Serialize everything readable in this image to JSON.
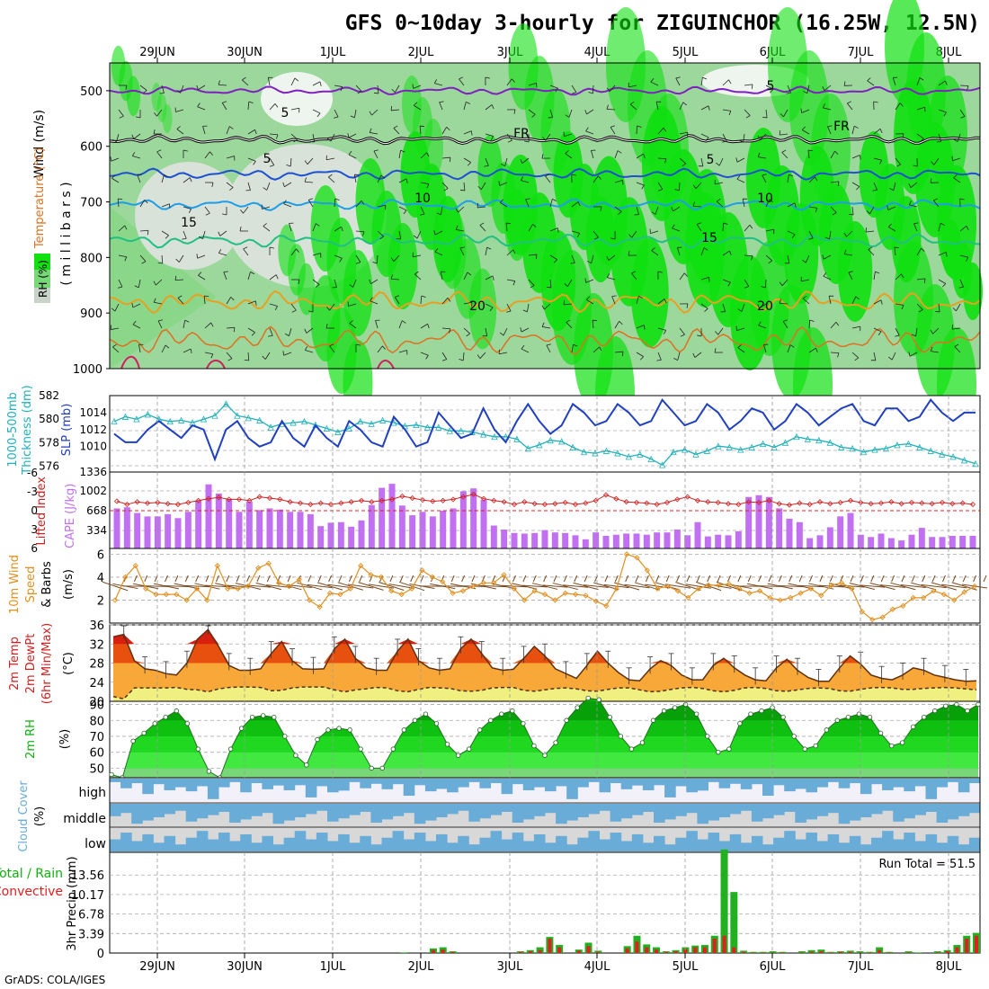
{
  "title": "GFS 0~10day 3-hourly for ZIGUINCHOR (16.25W, 12.5N)",
  "credit": "GrADS: COLA/IGES",
  "colors": {
    "rh_light": "#c8d4c8",
    "rh_mid": "#78d878",
    "rh_bright": "#10e010",
    "temp_5": "#1e50d0",
    "temp_10": "#1e9ee8",
    "temp_15": "#20c080",
    "temp_20": "#e8a020",
    "wind_5": "#8020c0",
    "slp": "#2040c0",
    "thick": "#20b0b8",
    "li": "#d02020",
    "cape": "#c070f0",
    "wind10": "#e09020",
    "t2m": "#f07010",
    "dewpt": "#f0f080",
    "rh2m": "#10b010",
    "cloud": "#6aacd8",
    "cloud_bg": "#d8d8d8",
    "precip_total": "#20b020",
    "precip_conv": "#e02020"
  },
  "dates_top": [
    "29JUN",
    "30JUN",
    "1JUL",
    "2JUL",
    "3JUL",
    "4JUL",
    "5JUL",
    "6JUL",
    "7JUL",
    "8JUL"
  ],
  "dates_bottom": [
    "29JUN",
    "30JUN",
    "1JUL",
    "2JUL",
    "3JUL",
    "4JUL",
    "5JUL",
    "6JUL",
    "7JUL",
    "8JUL"
  ],
  "panels": {
    "upper": {
      "ylabel_rh": "RH (%)",
      "ylabel_temp": "Temperature (°C)",
      "ylabel_wind": "Wind (m/s)",
      "ylabel_mb": "( m i l l i b a r s )",
      "ticks": [
        "500",
        "600",
        "700",
        "800",
        "900",
        "1000"
      ],
      "labels": {
        "wind5a": "5",
        "wind5b": "5",
        "fr1": "FR",
        "fr2": "FR",
        "t5a": "5",
        "t5b": "5",
        "t10a": "10",
        "t10b": "10",
        "t15a": "15",
        "t15b": "15",
        "t20a": "20",
        "t20b": "20"
      }
    },
    "slp": {
      "ylabel_a": "1000-500mb",
      "ylabel_b": "Thickness (dm)",
      "ylabel_c": "SLP (mb)",
      "left_ticks": [
        "582",
        "580",
        "578",
        "576"
      ],
      "right_ticks": [
        "1014",
        "1012",
        "1010"
      ],
      "extra_tick": "1336"
    },
    "cape": {
      "ylabel_a": "Lifted Index",
      "ylabel_b": "CAPE (J/kg)",
      "left_ticks": [
        "-6",
        "-3",
        "0",
        "3",
        "6"
      ],
      "right_ticks": [
        "1002",
        "668",
        "334"
      ]
    },
    "wind10": {
      "ylabel_a": "10m Wind",
      "ylabel_b": "Speed",
      "ylabel_c": "& Barbs",
      "ylabel_d": "(m/s)",
      "ticks": [
        "6",
        "4",
        "2"
      ]
    },
    "t2m": {
      "ylabel_a": "2m Temp",
      "ylabel_b": "2m DewPt",
      "ylabel_c": "(6hr Min/Max)",
      "ylabel_d": "(°C)",
      "ticks": [
        "36",
        "32",
        "28",
        "24",
        "20"
      ]
    },
    "rh2m": {
      "ylabel_a": "2m RH",
      "ylabel_b": "(%)",
      "ticks": [
        "90",
        "80",
        "70",
        "60",
        "50"
      ]
    },
    "cloud": {
      "ylabel_a": "Cloud Cover",
      "ylabel_b": "(%)",
      "levels": [
        "high",
        "middle",
        "low"
      ]
    },
    "precip": {
      "ylabel_a": "Total / Rain",
      "ylabel_b": "Convective",
      "ylabel_c": "3hr Precip (mm)",
      "ticks": [
        "13.56",
        "10.17",
        "6.78",
        "3.39",
        "0"
      ],
      "run_total": "Run Total = 51.5"
    }
  },
  "chart_data": [
    {
      "type": "line",
      "title": "1000-500mb Thickness (dm) / SLP (mb)",
      "series": [
        {
          "name": "SLP (mb)",
          "values": [
            1011.5,
            1010.5,
            1010.5,
            1012,
            1013,
            1012,
            1011,
            1012.5,
            1012,
            1008.5,
            1012,
            1013,
            1011,
            1010,
            1010.5,
            1013,
            1011,
            1010,
            1012.5,
            1011,
            1010,
            1013,
            1012,
            1010.5,
            1010,
            1013.5,
            1012,
            1010,
            1010.5,
            1014,
            1012.5,
            1011,
            1011.5,
            1014.5,
            1012,
            1010.5,
            1013,
            1015,
            1013,
            1011.5,
            1012.5,
            1015,
            1014,
            1012.5,
            1013,
            1015,
            1014,
            1012.5,
            1013,
            1015.5,
            1014,
            1012.5,
            1013,
            1015,
            1014,
            1012,
            1013,
            1014.5,
            1014,
            1012,
            1013,
            1015,
            1014,
            1012.5,
            1013.5,
            1014.5,
            1015,
            1013,
            1012.5,
            1014.5,
            1014.5,
            1013,
            1013.5,
            1015.5,
            1014,
            1013,
            1014,
            1014
          ]
        },
        {
          "name": "1000-500mb Thickness (dm)",
          "values": [
            579.8,
            580.2,
            580.0,
            580.4,
            580.0,
            579.8,
            579.9,
            579.7,
            580.0,
            580.3,
            581.3,
            580.3,
            580.1,
            579.9,
            579.3,
            579.6,
            579.7,
            579.8,
            579.5,
            579.2,
            578.9,
            579.2,
            579.8,
            579.6,
            579.9,
            579.7,
            579.4,
            579.5,
            579.3,
            579.3,
            579.0,
            579.0,
            578.9,
            578.7,
            578.5,
            578.5,
            578.3,
            577.5,
            577.8,
            578.2,
            578.1,
            577.6,
            577.2,
            577.1,
            577.3,
            577.1,
            576.8,
            577.0,
            576.6,
            576.1,
            577.2,
            577.4,
            577.0,
            577.3,
            577.7,
            577.6,
            577.4,
            577.6,
            577.9,
            577.6,
            578.0,
            578.5,
            578.3,
            578.2,
            578.0,
            577.6,
            577.5,
            577.2,
            577.4,
            577.5,
            577.8,
            577.9,
            577.6,
            577.3,
            577.0,
            576.8,
            576.5,
            576.2
          ]
        }
      ],
      "ylim": [
        575.5,
        582
      ]
    },
    {
      "type": "bar",
      "title": "Lifted Index / CAPE (J/kg)",
      "categories_note": "3-hourly steps",
      "series": [
        {
          "name": "CAPE (J/kg)",
          "values": [
            700,
            720,
            620,
            560,
            560,
            600,
            530,
            640,
            830,
            1120,
            960,
            860,
            640,
            820,
            670,
            700,
            680,
            640,
            640,
            600,
            390,
            450,
            460,
            380,
            490,
            760,
            1060,
            1130,
            750,
            580,
            640,
            560,
            660,
            700,
            1000,
            1050,
            850,
            400,
            330,
            270,
            260,
            270,
            320,
            280,
            270,
            230,
            160,
            280,
            220,
            240,
            260,
            260,
            240,
            280,
            280,
            330,
            230,
            460,
            210,
            240,
            230,
            300,
            900,
            930,
            900,
            700,
            520,
            460,
            180,
            230,
            370,
            560,
            620,
            240,
            200,
            260,
            180,
            140,
            240,
            360,
            200,
            200,
            220,
            220,
            220
          ]
        },
        {
          "name": "Lifted Index",
          "values": [
            -1.5,
            -1.0,
            -1.4,
            -1.2,
            -1.3,
            -1.1,
            -1.0,
            -1.3,
            -1.6,
            -1.9,
            -2.1,
            -1.8,
            -1.8,
            -1.6,
            -2.2,
            -2.0,
            -1.8,
            -1.4,
            -1.2,
            -1.0,
            -1.2,
            -1.0,
            -1.2,
            -1.4,
            -1.6,
            -1.4,
            -1.6,
            -1.8,
            -2.3,
            -2.0,
            -1.7,
            -1.5,
            -1.6,
            -1.8,
            -2.2,
            -2.6,
            -1.9,
            -1.6,
            -1.4,
            -1.0,
            -1.4,
            -1.1,
            -1.0,
            -1.1,
            -1.3,
            -1.0,
            -1.2,
            -1.6,
            -2.5,
            -1.9,
            -1.4,
            -1.3,
            -1.2,
            -1.0,
            -1.3,
            -1.8,
            -2.2,
            -1.6,
            -1.4,
            -1.3,
            -1.1,
            -1.0,
            -1.4,
            -1.3,
            -1.6,
            -1.1,
            -0.9,
            -1.2,
            -1.0,
            -1.4,
            -1.1,
            -1.3,
            -1.6,
            -1.3,
            -1.1,
            -1.2,
            -1.4,
            -1.1,
            -1.3,
            -1.2,
            -1.1,
            -1.3,
            -1.1,
            -1.2,
            -1.0
          ]
        }
      ],
      "ylim": [
        0,
        1336
      ]
    },
    {
      "type": "line",
      "title": "10m Wind Speed (m/s)",
      "series": [
        {
          "name": "10m Wind Speed",
          "values": [
            2.0,
            4.0,
            5.0,
            3.0,
            2.5,
            2.5,
            2.5,
            2.0,
            3.0,
            2.0,
            5.0,
            3.0,
            3.0,
            3.2,
            4.8,
            5.2,
            3.5,
            3.2,
            3.8,
            2.0,
            1.4,
            2.6,
            2.5,
            3.0,
            5.0,
            4.2,
            4.0,
            2.8,
            2.5,
            3.0,
            4.6,
            4.0,
            3.6,
            2.6,
            2.8,
            3.2,
            3.5,
            3.5,
            4.2,
            3.0,
            2.0,
            2.8,
            2.5,
            2.0,
            2.6,
            2.5,
            2.4,
            1.9,
            1.5,
            3.0,
            6.0,
            5.7,
            4.6,
            3.0,
            3.2,
            2.8,
            2.2,
            3.0,
            3.3,
            3.3,
            3.4,
            3.0,
            2.6,
            2.8,
            2.2,
            2.0,
            2.2,
            2.6,
            3.0,
            2.4,
            3.3,
            3.5,
            3.0,
            1.0,
            0.3,
            0.5,
            1.2,
            1.5,
            2.2,
            2.2,
            2.8,
            2.5,
            2.0,
            2.7,
            3.2
          ]
        }
      ],
      "ylim": [
        0,
        6.5
      ]
    },
    {
      "type": "area",
      "title": "2m Temp / 2m DewPt (°C)",
      "series": [
        {
          "name": "2m Temp",
          "values": [
            33.5,
            34.0,
            28.5,
            26.8,
            26.5,
            25.8,
            25.5,
            28.0,
            33.0,
            35.0,
            31.5,
            27.5,
            26.5,
            26.5,
            26.8,
            30.0,
            32.5,
            28.5,
            26.8,
            26.7,
            26.8,
            31.0,
            33.0,
            29.0,
            27.0,
            26.5,
            26.5,
            30.5,
            33.0,
            28.5,
            27.0,
            26.5,
            26.8,
            31.0,
            33.0,
            30.0,
            27.0,
            26.5,
            26.7,
            29.0,
            31.5,
            29.5,
            26.8,
            25.8,
            24.8,
            27.5,
            30.5,
            28.0,
            26.0,
            24.5,
            24.3,
            26.8,
            28.5,
            27.5,
            25.5,
            24.5,
            24.5,
            27.5,
            29.0,
            27.0,
            25.5,
            24.5,
            24.3,
            27.0,
            28.8,
            26.5,
            25.0,
            24.2,
            24.2,
            27.0,
            29.5,
            27.8,
            25.5,
            24.8,
            24.5,
            25.5,
            27.0,
            26.5,
            25.5,
            25.0,
            24.5,
            24.2,
            24.3
          ]
        },
        {
          "name": "2m DewPt",
          "values": [
            21.0,
            20.5,
            22.8,
            22.8,
            22.8,
            22.8,
            22.9,
            22.5,
            22.4,
            22.0,
            22.6,
            22.9,
            23.0,
            23.0,
            22.9,
            22.2,
            22.3,
            22.8,
            23.0,
            23.0,
            23.0,
            22.4,
            22.0,
            22.4,
            22.6,
            22.9,
            22.8,
            22.2,
            22.0,
            22.5,
            22.9,
            22.8,
            22.7,
            22.2,
            22.1,
            22.3,
            22.8,
            22.9,
            22.9,
            22.3,
            22.1,
            22.4,
            22.7,
            22.8,
            22.6,
            22.2,
            22.1,
            22.5,
            22.8,
            22.8,
            22.4,
            22.0,
            22.1,
            22.5,
            22.8,
            22.9,
            22.7,
            22.2,
            22.0,
            22.3,
            22.8,
            22.9,
            22.7,
            22.2,
            22.1,
            22.4,
            22.7,
            22.8,
            22.7,
            22.2,
            22.1,
            22.5,
            22.8,
            22.9,
            22.8,
            22.5,
            22.5,
            22.7,
            22.8,
            22.9,
            22.8,
            22.6,
            22.4
          ]
        }
      ],
      "ylim": [
        20,
        36
      ]
    },
    {
      "type": "area",
      "title": "2m RH (%)",
      "series": [
        {
          "name": "2m RH",
          "values": [
            46,
            44,
            67,
            72,
            78,
            82,
            86,
            78,
            62,
            48,
            44,
            62,
            75,
            82,
            83,
            82,
            70,
            58,
            52,
            68,
            74,
            75,
            74,
            62,
            50,
            50,
            62,
            74,
            80,
            84,
            78,
            65,
            58,
            62,
            74,
            80,
            84,
            86,
            78,
            64,
            58,
            66,
            80,
            88,
            94,
            93,
            82,
            70,
            62,
            66,
            80,
            86,
            88,
            90,
            84,
            70,
            60,
            62,
            78,
            84,
            86,
            88,
            82,
            70,
            62,
            64,
            74,
            80,
            82,
            84,
            82,
            72,
            64,
            66,
            76,
            82,
            86,
            89,
            90,
            86,
            90
          ]
        }
      ],
      "ylim": [
        44,
        92
      ]
    },
    {
      "type": "bar",
      "title": "3hr Precip (mm)",
      "series": [
        {
          "name": "Total",
          "values": [
            0,
            0,
            0,
            0,
            0,
            0,
            0,
            0,
            0,
            0,
            0,
            0,
            0,
            0,
            0,
            0,
            0,
            0,
            0,
            0,
            0,
            0,
            0,
            0,
            0,
            0,
            0,
            0,
            0,
            0,
            0.1,
            0,
            0,
            0.8,
            1.0,
            0.3,
            0,
            0,
            0,
            0,
            0,
            0,
            0.3,
            0.5,
            1.0,
            2.8,
            1.4,
            0,
            0.6,
            1.8,
            0.4,
            0,
            0,
            1.2,
            3.0,
            1.5,
            1.0,
            0.3,
            0.5,
            1.0,
            1.3,
            1.4,
            3.0,
            18.0,
            10.6,
            0.4,
            0.2,
            0.2,
            0.3,
            0.2,
            0,
            0.3,
            0.5,
            0.6,
            0.2,
            0.3,
            0.4,
            0.3,
            0.2,
            1.0,
            0.2,
            0,
            0.3,
            0.1,
            0,
            0.3,
            0.5,
            1.4,
            3.0,
            3.5
          ]
        },
        {
          "name": "Convective",
          "values": [
            0,
            0,
            0,
            0,
            0,
            0,
            0,
            0,
            0,
            0,
            0,
            0,
            0,
            0,
            0,
            0,
            0,
            0,
            0,
            0,
            0,
            0,
            0,
            0,
            0,
            0,
            0,
            0,
            0,
            0,
            0,
            0,
            0,
            0.5,
            0.6,
            0.2,
            0,
            0,
            0,
            0,
            0,
            0,
            0.2,
            0.3,
            0.5,
            2.5,
            1.0,
            0,
            0.4,
            1.2,
            0.2,
            0,
            0,
            0.8,
            2.0,
            1.0,
            0.6,
            0.2,
            0.3,
            0.7,
            1.0,
            1.0,
            2.5,
            3.0,
            1.0,
            0.2,
            0.1,
            0.1,
            0.1,
            0.1,
            0,
            0.1,
            0.2,
            0.3,
            0.1,
            0.2,
            0.2,
            0.1,
            0.1,
            0.5,
            0.1,
            0,
            0.1,
            0,
            0,
            0.1,
            0.3,
            1.0,
            2.5,
            3.0
          ]
        }
      ],
      "ylim": [
        0,
        17.5
      ]
    }
  ]
}
